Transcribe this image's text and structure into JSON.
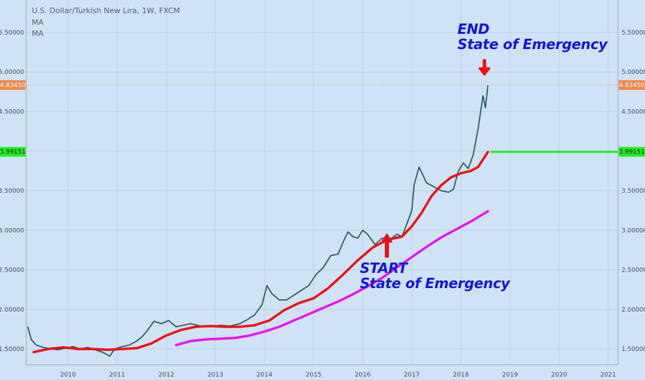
{
  "header": {
    "symbol_line": "U.S. Dollar/Turkish New Lira, 1W, FXCM",
    "indicator_1": "MA",
    "indicator_2": "MA"
  },
  "annotations": {
    "end_line1": "END",
    "end_line2": "State of Emergency",
    "start_line1": "START",
    "start_line2": "State of Emergency"
  },
  "colors": {
    "background": "#cfe3f7",
    "price_line": "#333c44",
    "ma_fast": "#ee1111",
    "ma_slow": "#ee11ee",
    "horizontal_level": "#22ee22",
    "last_price_badge": "#f0864a",
    "annotation_text": "#1414e6",
    "arrow": "#ee1111"
  },
  "chart_data": {
    "type": "line",
    "title": "U.S. Dollar/Turkish New Lira, 1W, FXCM",
    "xlabel": "",
    "ylabel": "",
    "x_ticks": [
      "2010",
      "2011",
      "2012",
      "2013",
      "2014",
      "2015",
      "2016",
      "2017",
      "2018",
      "2019",
      "2020",
      "2021"
    ],
    "y_ticks": [
      "1.50000",
      "2.00000",
      "2.50000",
      "3.00000",
      "3.50000",
      "4.00000",
      "4.50000",
      "5.00000",
      "5.50000"
    ],
    "xlim": [
      2009.15,
      2021.2
    ],
    "ylim": [
      1.3,
      5.91
    ],
    "grid": true,
    "last_price": {
      "value": 4.8345,
      "label": "4.83450"
    },
    "level": {
      "value": 3.99151,
      "label": "3.99151",
      "from_x": 2018.6
    },
    "series": [
      {
        "name": "",
        "role": "price",
        "x": [
          2009.18,
          2009.25,
          2009.35,
          2009.5,
          2009.65,
          2009.8,
          2009.95,
          2010.1,
          2010.25,
          2010.4,
          2010.55,
          2010.7,
          2010.85,
          2010.95,
          2011.1,
          2011.25,
          2011.4,
          2011.5,
          2011.6,
          2011.75,
          2011.9,
          2012.05,
          2012.2,
          2012.35,
          2012.5,
          2012.7,
          2012.9,
          2013.1,
          2013.3,
          2013.5,
          2013.65,
          2013.8,
          2013.95,
          2014.05,
          2014.15,
          2014.3,
          2014.45,
          2014.6,
          2014.75,
          2014.9,
          2015.05,
          2015.2,
          2015.35,
          2015.5,
          2015.6,
          2015.7,
          2015.8,
          2015.9,
          2016.0,
          2016.1,
          2016.25,
          2016.4,
          2016.55,
          2016.7,
          2016.8,
          2016.9,
          2017.0,
          2017.05,
          2017.15,
          2017.3,
          2017.45,
          2017.6,
          2017.75,
          2017.85,
          2017.95,
          2018.05,
          2018.15,
          2018.25,
          2018.35,
          2018.45,
          2018.5,
          2018.55
        ],
        "values": [
          1.78,
          1.62,
          1.55,
          1.52,
          1.5,
          1.49,
          1.51,
          1.53,
          1.5,
          1.52,
          1.49,
          1.46,
          1.41,
          1.5,
          1.53,
          1.55,
          1.6,
          1.65,
          1.72,
          1.85,
          1.82,
          1.86,
          1.78,
          1.8,
          1.82,
          1.79,
          1.78,
          1.8,
          1.79,
          1.82,
          1.87,
          1.93,
          2.06,
          2.3,
          2.2,
          2.12,
          2.12,
          2.18,
          2.24,
          2.3,
          2.44,
          2.53,
          2.68,
          2.7,
          2.85,
          2.98,
          2.92,
          2.9,
          3.0,
          2.95,
          2.82,
          2.9,
          2.88,
          2.95,
          2.92,
          3.08,
          3.25,
          3.58,
          3.8,
          3.6,
          3.55,
          3.5,
          3.48,
          3.52,
          3.75,
          3.85,
          3.78,
          3.95,
          4.28,
          4.7,
          4.55,
          4.83
        ]
      },
      {
        "name": "MA",
        "role": "ma_fast",
        "x": [
          2009.3,
          2009.6,
          2009.9,
          2010.2,
          2010.5,
          2010.8,
          2011.1,
          2011.4,
          2011.7,
          2012.0,
          2012.3,
          2012.6,
          2012.9,
          2013.2,
          2013.5,
          2013.8,
          2014.1,
          2014.4,
          2014.7,
          2015.0,
          2015.3,
          2015.6,
          2015.9,
          2016.2,
          2016.5,
          2016.8,
          2017.0,
          2017.2,
          2017.4,
          2017.6,
          2017.8,
          2018.0,
          2018.2,
          2018.35,
          2018.55
        ],
        "values": [
          1.46,
          1.5,
          1.52,
          1.5,
          1.5,
          1.49,
          1.5,
          1.51,
          1.57,
          1.67,
          1.74,
          1.78,
          1.79,
          1.78,
          1.78,
          1.8,
          1.86,
          1.99,
          2.08,
          2.14,
          2.27,
          2.44,
          2.62,
          2.78,
          2.88,
          2.92,
          3.05,
          3.22,
          3.43,
          3.57,
          3.67,
          3.72,
          3.75,
          3.8,
          3.99
        ]
      },
      {
        "name": "MA",
        "role": "ma_slow",
        "x": [
          2012.2,
          2012.5,
          2012.8,
          2013.1,
          2013.4,
          2013.7,
          2014.0,
          2014.3,
          2014.6,
          2014.9,
          2015.2,
          2015.5,
          2015.8,
          2016.1,
          2016.4,
          2016.7,
          2017.0,
          2017.3,
          2017.6,
          2017.9,
          2018.2,
          2018.55
        ],
        "values": [
          1.55,
          1.6,
          1.62,
          1.63,
          1.64,
          1.67,
          1.72,
          1.78,
          1.86,
          1.94,
          2.02,
          2.1,
          2.19,
          2.29,
          2.4,
          2.53,
          2.66,
          2.79,
          2.91,
          3.01,
          3.11,
          3.24
        ]
      }
    ]
  }
}
